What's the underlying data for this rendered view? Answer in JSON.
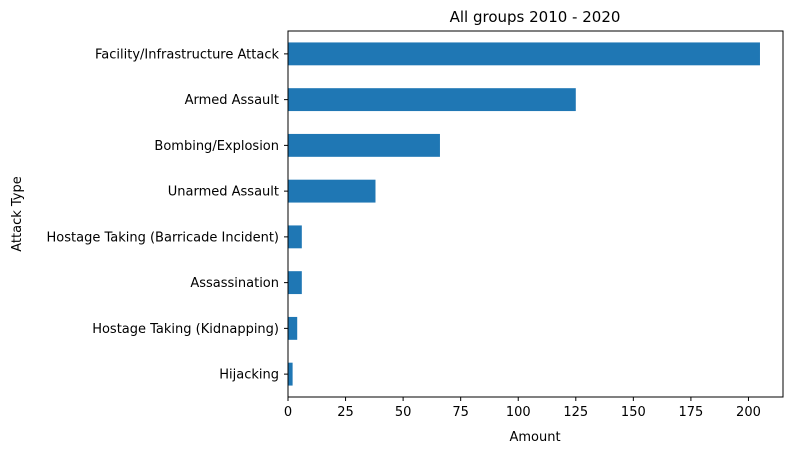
{
  "chart_data": {
    "type": "bar",
    "orientation": "horizontal",
    "title": "All groups 2010 - 2020",
    "xlabel": "Amount",
    "ylabel": "Attack Type",
    "categories": [
      "Facility/Infrastructure Attack",
      "Armed Assault",
      "Bombing/Explosion",
      "Unarmed Assault",
      "Hostage Taking (Barricade Incident)",
      "Assassination",
      "Hostage Taking (Kidnapping)",
      "Hijacking"
    ],
    "values": [
      205,
      125,
      66,
      38,
      6,
      6,
      4,
      2
    ],
    "xlim": [
      0,
      215
    ],
    "xticks": [
      "0",
      "25",
      "50",
      "75",
      "100",
      "125",
      "150",
      "175",
      "200"
    ],
    "grid": false,
    "bar_color": "#1f77b4"
  }
}
